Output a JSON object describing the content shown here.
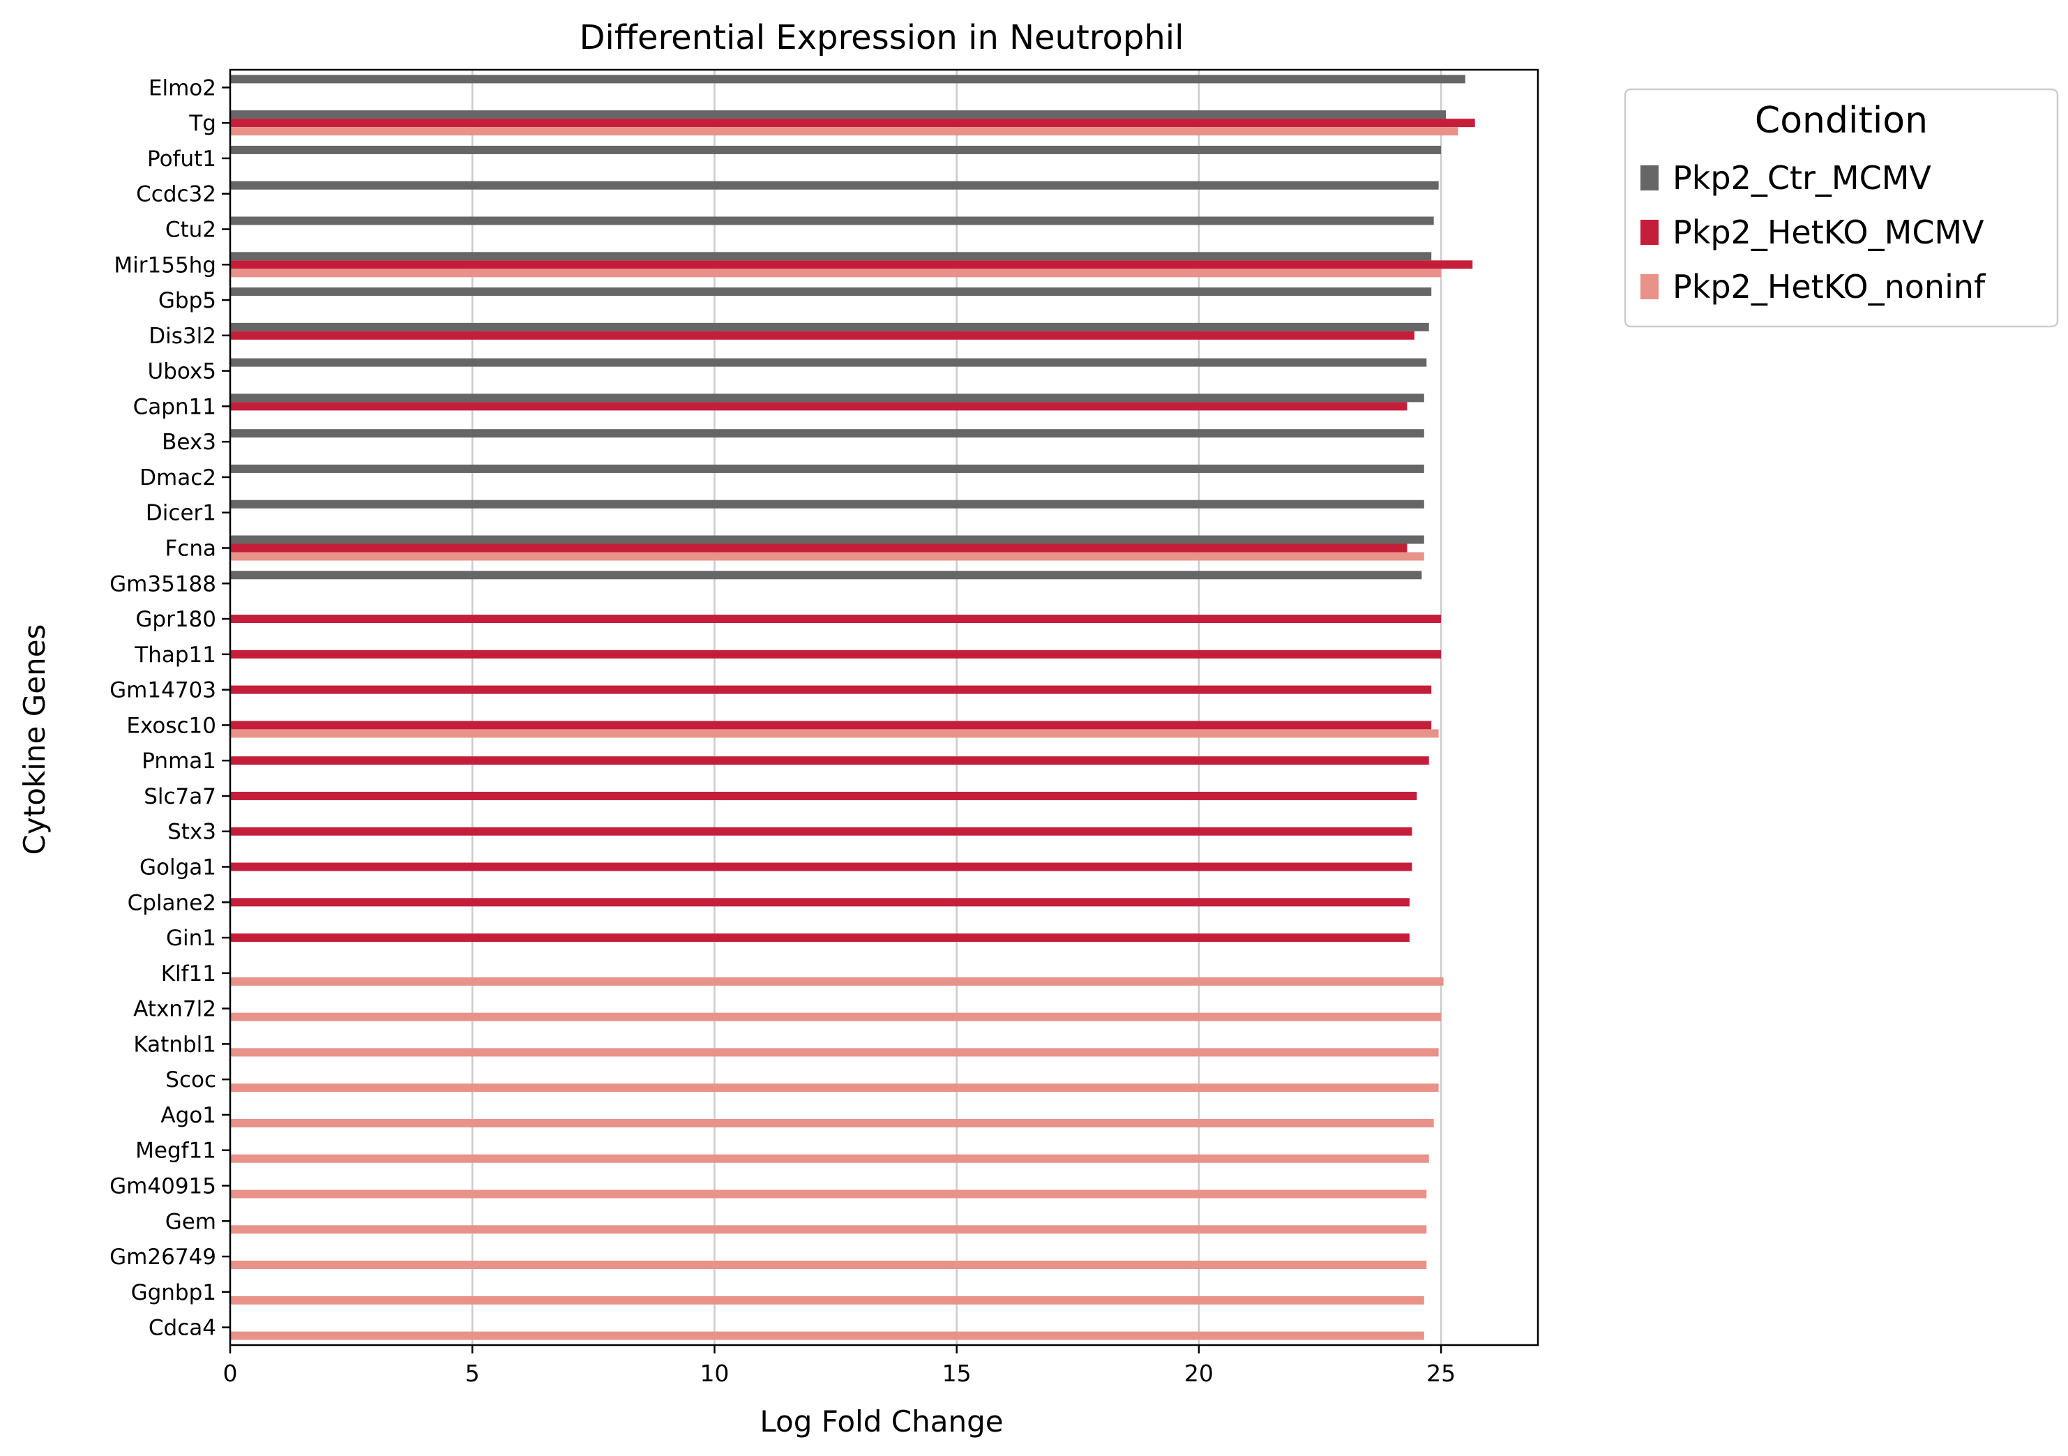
{
  "chart_data": {
    "type": "bar",
    "orientation": "horizontal",
    "title": "Differential Expression in Neutrophil",
    "xlabel": "Log Fold Change",
    "ylabel": "Cytokine Genes",
    "xlim": [
      0,
      27
    ],
    "xticks": [
      0,
      5,
      10,
      15,
      20,
      25
    ],
    "grid": "vertical",
    "legend": {
      "title": "Condition",
      "position": "outside-top-right"
    },
    "categories": [
      "Elmo2",
      "Tg",
      "Pofut1",
      "Ccdc32",
      "Ctu2",
      "Mir155hg",
      "Gbp5",
      "Dis3l2",
      "Ubox5",
      "Capn11",
      "Bex3",
      "Dmac2",
      "Dicer1",
      "Fcna",
      "Gm35188",
      "Gpr180",
      "Thap11",
      "Gm14703",
      "Exosc10",
      "Pnma1",
      "Slc7a7",
      "Stx3",
      "Golga1",
      "Cplane2",
      "Gin1",
      "Klf11",
      "Atxn7l2",
      "Katnbl1",
      "Scoc",
      "Ago1",
      "Megf11",
      "Gm40915",
      "Gem",
      "Gm26749",
      "Ggnbp1",
      "Cdca4"
    ],
    "series": [
      {
        "name": "Pkp2_Ctr_MCMV",
        "color": "#666666",
        "values": [
          25.5,
          25.1,
          25.0,
          24.95,
          24.85,
          24.8,
          24.8,
          24.75,
          24.7,
          24.65,
          24.65,
          24.65,
          24.65,
          24.65,
          24.6,
          null,
          null,
          null,
          null,
          null,
          null,
          null,
          null,
          null,
          null,
          null,
          null,
          null,
          null,
          null,
          null,
          null,
          null,
          null,
          null,
          null
        ]
      },
      {
        "name": "Pkp2_HetKO_MCMV",
        "color": "#c41e3a",
        "values": [
          null,
          25.7,
          null,
          null,
          null,
          25.65,
          null,
          24.45,
          null,
          24.3,
          null,
          null,
          null,
          24.3,
          null,
          25.0,
          25.0,
          24.8,
          24.8,
          24.75,
          24.5,
          24.4,
          24.4,
          24.35,
          24.35,
          null,
          null,
          null,
          null,
          null,
          null,
          null,
          null,
          null,
          null,
          null
        ]
      },
      {
        "name": "Pkp2_HetKO_noninf",
        "color": "#e8928a",
        "values": [
          null,
          25.35,
          null,
          null,
          null,
          25.0,
          null,
          null,
          null,
          null,
          null,
          null,
          null,
          24.65,
          null,
          null,
          null,
          null,
          24.95,
          null,
          null,
          null,
          null,
          null,
          null,
          25.05,
          25.0,
          24.95,
          24.95,
          24.85,
          24.75,
          24.7,
          24.7,
          24.7,
          24.65,
          24.65
        ]
      }
    ]
  }
}
